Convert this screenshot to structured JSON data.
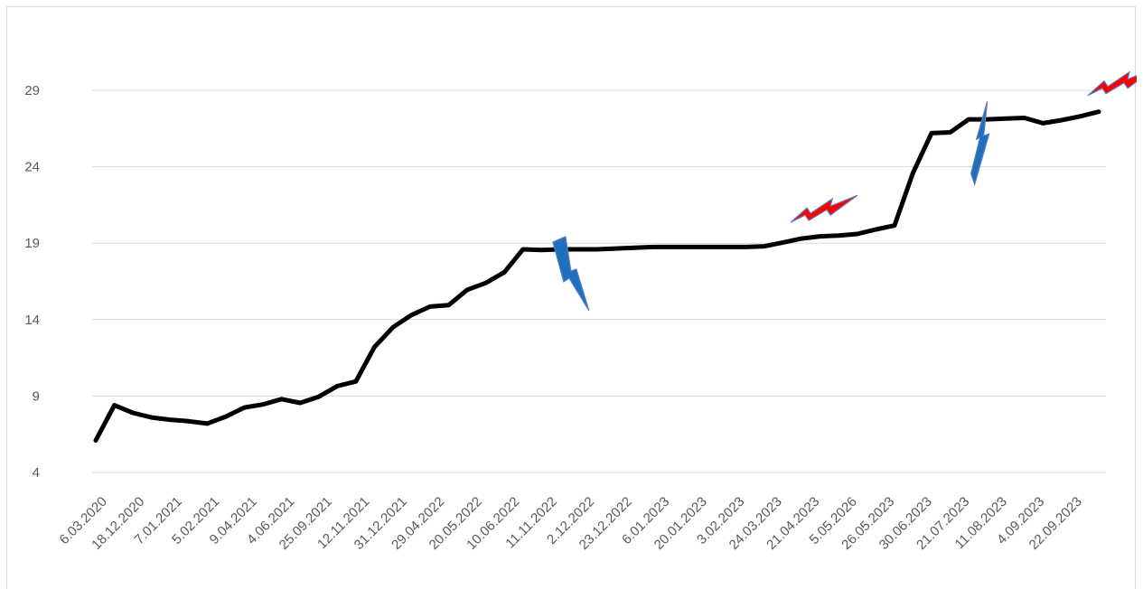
{
  "chart_data": {
    "type": "line",
    "title": "",
    "xlabel": "",
    "ylabel": "",
    "ylim": [
      4,
      32
    ],
    "yticks": [
      4,
      9,
      14,
      19,
      24,
      29
    ],
    "grid": true,
    "legend": "none",
    "x_tick_labels": [
      "6.03.2020",
      "18.12.2020",
      "7.01.2021",
      "5.02.2021",
      "9.04.2021",
      "4.06.2021",
      "25.09.2021",
      "12.11.2021",
      "31.12.2021",
      "29.04.2022",
      "20.05.2022",
      "10.06.2022",
      "11.11.2022",
      "2.12.2022",
      "23.12.2022",
      "6.01.2023",
      "20.01.2023",
      "3.02.2023",
      "24.03.2023",
      "21.04.2023",
      "5.05.2026",
      "26.05.2023",
      "30.06.2023",
      "21.07.2023",
      "11.08.2023",
      "4.09.2023",
      "22.09.2023"
    ],
    "series": [
      {
        "name": "",
        "color": "#000000",
        "values": [
          6.1,
          8.4,
          7.9,
          7.6,
          7.45,
          7.35,
          7.2,
          7.65,
          8.25,
          8.45,
          8.8,
          8.55,
          8.95,
          9.65,
          9.95,
          12.2,
          13.5,
          14.3,
          14.85,
          14.95,
          15.95,
          16.4,
          17.1,
          18.6,
          18.55,
          18.6,
          18.6,
          18.6,
          18.65,
          18.7,
          18.75,
          18.75,
          18.75,
          18.75,
          18.75,
          18.75,
          18.8,
          19.05,
          19.3,
          19.45,
          19.5,
          19.6,
          19.9,
          20.15,
          23.6,
          26.2,
          26.25,
          27.1,
          27.1,
          27.15,
          27.2,
          26.85,
          27.05,
          27.3,
          27.6
        ]
      }
    ],
    "annotations": [
      {
        "type": "lightning",
        "color": "#1f6fbf",
        "direction": "down",
        "near_index": 25
      },
      {
        "type": "lightning",
        "color": "#ff0000",
        "direction": "up-right",
        "near_index": 38
      },
      {
        "type": "lightning",
        "color": "#1f6fbf",
        "direction": "up",
        "near_index": 48
      },
      {
        "type": "lightning",
        "color": "#ff0000",
        "direction": "up-right",
        "near_index": 54
      }
    ]
  }
}
